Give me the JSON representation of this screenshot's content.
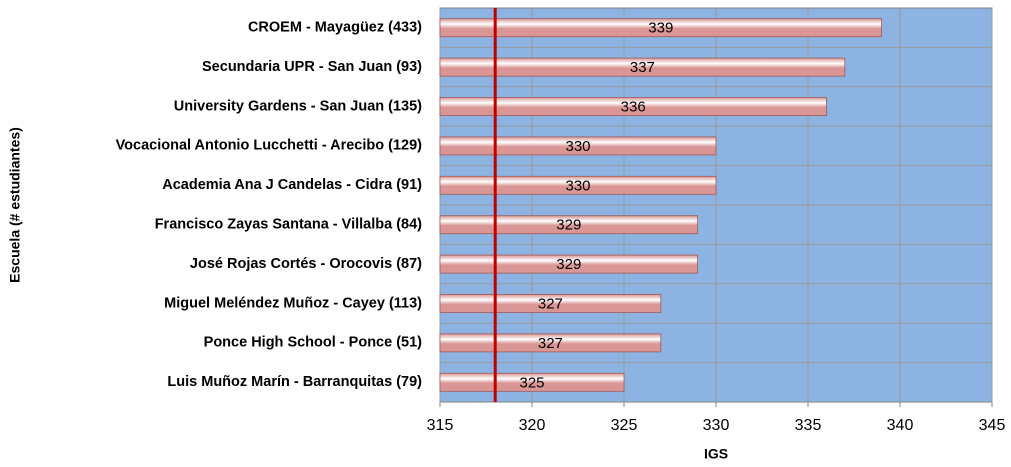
{
  "chart_data": {
    "type": "bar",
    "orientation": "horizontal",
    "x_axis_label": "IGS",
    "y_axis_label": "Escuela (# estudiantes)",
    "categories": [
      "CROEM - Mayagüez (433)",
      "Secundaria UPR - San Juan (93)",
      "University Gardens - San Juan (135)",
      "Vocacional Antonio Lucchetti - Arecibo (129)",
      "Academia Ana J Candelas - Cidra (91)",
      "Francisco Zayas Santana - Villalba (84)",
      "José Rojas Cortés - Orocovis (87)",
      "Miguel Meléndez Muñoz - Cayey (113)",
      "Ponce High School - Ponce (51)",
      "Luis Muñoz Marín - Barranquitas (79)"
    ],
    "values": [
      339,
      337,
      336,
      330,
      330,
      329,
      329,
      327,
      327,
      325
    ],
    "color": "#d99694",
    "plot_background": "#8db3e2",
    "reference_line": 318,
    "reference_color": "#c00000",
    "xlim": [
      315,
      345
    ],
    "xticks": [
      315,
      320,
      325,
      330,
      335,
      340,
      345
    ],
    "grid": true
  }
}
